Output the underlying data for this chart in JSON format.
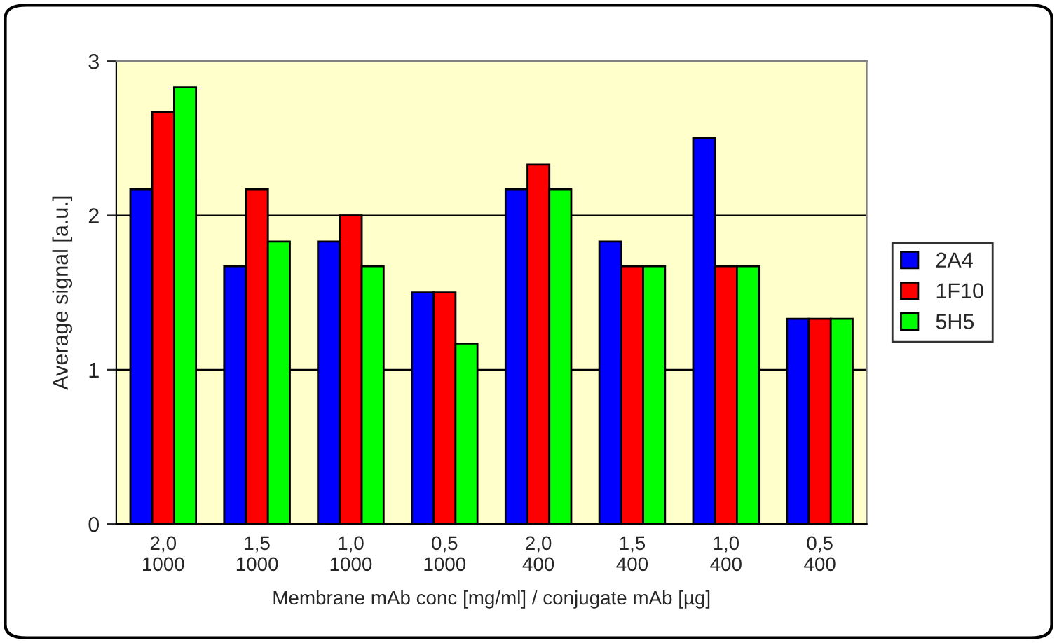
{
  "chart_data": {
    "type": "bar",
    "xlabel": "Membrane mAb conc [mg/ml] / conjugate mAb [µg]",
    "ylabel": "Average signal [a.u.]",
    "categories": [
      "2,0\n1000",
      "1,5\n1000",
      "1,0\n1000",
      "0,5\n1000",
      "2,0\n400",
      "1,5\n400",
      "1,0\n400",
      "0,5\n400"
    ],
    "series": [
      {
        "name": "2A4",
        "color": "#0000ff",
        "values": [
          2.17,
          1.67,
          1.83,
          1.5,
          2.17,
          1.83,
          2.5,
          1.33
        ]
      },
      {
        "name": "1F10",
        "color": "#ff0000",
        "values": [
          2.67,
          2.17,
          2.0,
          1.5,
          2.33,
          1.67,
          1.67,
          1.33
        ]
      },
      {
        "name": "5H5",
        "color": "#00ff00",
        "values": [
          2.83,
          1.83,
          1.67,
          1.17,
          2.17,
          1.67,
          1.67,
          1.33
        ]
      }
    ],
    "ylim": [
      0,
      3
    ],
    "yticks": [
      0,
      1,
      2,
      3
    ],
    "grid": "y",
    "legend": "right"
  }
}
